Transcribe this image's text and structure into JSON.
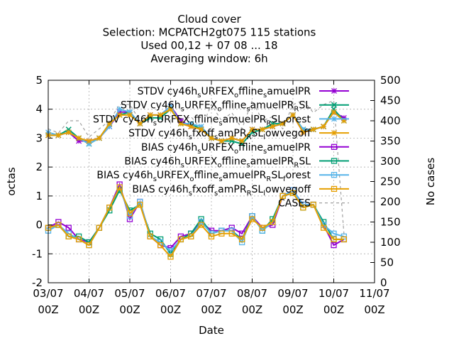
{
  "chart_data": {
    "type": "line",
    "title": [
      "Cloud cover",
      "Selection: MCPATCH2gt075    115 stations",
      "Used  00,12  + 07 08 ... 18",
      "Averaging window:  6h"
    ],
    "xlabel": "Date",
    "ylabel": "octas",
    "y2label": "No cases",
    "xlim": [
      0,
      8
    ],
    "ylim": [
      -2,
      5
    ],
    "y2lim": [
      0,
      500
    ],
    "x_ticks": [
      {
        "pos": 0,
        "line1": "03/07",
        "line2": "00Z"
      },
      {
        "pos": 1,
        "line1": "04/07",
        "line2": "00Z"
      },
      {
        "pos": 2,
        "line1": "05/07",
        "line2": "00Z"
      },
      {
        "pos": 3,
        "line1": "06/07",
        "line2": "00Z"
      },
      {
        "pos": 4,
        "line1": "07/07",
        "line2": "00Z"
      },
      {
        "pos": 5,
        "line1": "08/07",
        "line2": "00Z"
      },
      {
        "pos": 6,
        "line1": "09/07",
        "line2": "00Z"
      },
      {
        "pos": 7,
        "line1": "10/07",
        "line2": "00Z"
      },
      {
        "pos": 8,
        "line1": "11/07",
        "line2": "00Z"
      }
    ],
    "y_ticks": [
      -2,
      -1,
      0,
      1,
      2,
      3,
      4,
      5
    ],
    "y2_ticks": [
      0,
      50,
      100,
      150,
      200,
      250,
      300,
      350,
      400,
      450,
      500
    ],
    "grid": true,
    "legend_position": "top-right",
    "x": [
      0,
      0.25,
      0.5,
      0.75,
      1,
      1.25,
      1.5,
      1.75,
      2,
      2.25,
      2.5,
      2.75,
      3,
      3.25,
      3.5,
      3.75,
      4,
      4.25,
      4.5,
      4.75,
      5,
      5.25,
      5.5,
      5.75,
      6,
      6.25,
      6.5,
      6.75,
      7,
      7.25
    ],
    "series": [
      {
        "legend": [
          "STDV cy46h",
          "s",
          "URFEX",
          "o",
          "ffline",
          "s",
          "amuelPR"
        ],
        "color": "#9400d3",
        "marker": "star",
        "axis": "y",
        "values": [
          3.1,
          3.1,
          3.2,
          2.9,
          2.9,
          3.0,
          3.4,
          3.9,
          3.9,
          3.5,
          3.8,
          3.8,
          4.1,
          3.6,
          3.4,
          3.3,
          3.0,
          2.9,
          3.0,
          2.9,
          3.3,
          3.3,
          3.4,
          3.5,
          3.8,
          3.2,
          3.3,
          3.4,
          3.9,
          3.7
        ]
      },
      {
        "legend": [
          "STDV cy46h",
          "s",
          "URFEX",
          "o",
          "ffline",
          "s",
          "amuelPR",
          "R",
          "SL"
        ],
        "color": "#009e73",
        "marker": "x",
        "axis": "y",
        "values": [
          3.1,
          3.1,
          3.3,
          3.0,
          2.8,
          3.0,
          3.5,
          3.8,
          3.9,
          3.5,
          3.7,
          3.7,
          4.0,
          3.5,
          3.5,
          3.3,
          3.0,
          2.9,
          2.9,
          2.8,
          3.2,
          3.3,
          3.5,
          3.5,
          3.8,
          3.3,
          3.3,
          3.4,
          4.0,
          3.6
        ]
      },
      {
        "legend": [
          "STDV cy46h",
          "s",
          "URFEX",
          "o",
          "ffline",
          "s",
          "amuelPR",
          "R",
          "SL",
          "f",
          "orest"
        ],
        "color": "#56b4e9",
        "marker": "star",
        "axis": "y",
        "values": [
          3.2,
          3.1,
          3.2,
          3.0,
          2.8,
          3.0,
          3.4,
          4.0,
          3.9,
          3.5,
          3.8,
          3.8,
          4.1,
          3.5,
          3.5,
          3.4,
          3.0,
          2.9,
          3.0,
          2.9,
          3.3,
          3.3,
          3.4,
          3.5,
          3.8,
          3.3,
          3.3,
          3.4,
          3.9,
          3.6
        ]
      },
      {
        "legend": [
          "STDV cy46h",
          "s",
          "fxoff",
          "s",
          "amPR",
          "R",
          "SL",
          "l",
          "owvegoff"
        ],
        "color": "#e69f00",
        "marker": "star",
        "axis": "y",
        "values": [
          3.1,
          3.1,
          3.2,
          3.0,
          2.9,
          3.0,
          3.5,
          3.8,
          3.8,
          3.5,
          3.8,
          3.8,
          4.0,
          3.5,
          3.4,
          3.3,
          3.0,
          2.9,
          3.0,
          2.9,
          3.3,
          3.3,
          3.4,
          3.5,
          3.8,
          3.2,
          3.3,
          3.4,
          3.9,
          3.6
        ]
      },
      {
        "legend": [
          "BIAS cy46h",
          "s",
          "URFEX",
          "o",
          "ffline",
          "s",
          "amuelPR"
        ],
        "color": "#9400d3",
        "marker": "square",
        "axis": "y",
        "values": [
          -0.1,
          0.1,
          -0.1,
          -0.5,
          -0.6,
          -0.1,
          0.6,
          1.4,
          0.2,
          0.8,
          -0.4,
          -0.7,
          -0.8,
          -0.4,
          -0.3,
          0.1,
          -0.2,
          -0.2,
          -0.1,
          -0.3,
          0.3,
          -0.1,
          0.0,
          1.0,
          1.2,
          0.7,
          0.7,
          0.0,
          -0.7,
          -0.5
        ]
      },
      {
        "legend": [
          "BIAS cy46h",
          "s",
          "URFEX",
          "o",
          "ffline",
          "s",
          "amuelPR",
          "R",
          "SL"
        ],
        "color": "#009e73",
        "marker": "square",
        "axis": "y",
        "values": [
          -0.1,
          0.0,
          -0.4,
          -0.4,
          -0.6,
          -0.1,
          0.5,
          1.2,
          0.5,
          0.7,
          -0.3,
          -0.5,
          -1.0,
          -0.5,
          -0.3,
          0.2,
          -0.3,
          -0.2,
          -0.2,
          -0.5,
          0.3,
          -0.2,
          0.2,
          1.0,
          1.1,
          0.6,
          0.7,
          0.1,
          -0.5,
          -0.5
        ]
      },
      {
        "legend": [
          "BIAS cy46h",
          "s",
          "URFEX",
          "o",
          "ffline",
          "s",
          "amuelPR",
          "R",
          "SL",
          "f",
          "orest"
        ],
        "color": "#56b4e9",
        "marker": "square",
        "axis": "y",
        "values": [
          -0.2,
          0.0,
          -0.3,
          -0.5,
          -0.7,
          -0.1,
          0.6,
          1.3,
          0.3,
          0.8,
          -0.4,
          -0.6,
          -0.9,
          -0.5,
          -0.4,
          0.1,
          -0.3,
          -0.2,
          -0.2,
          -0.6,
          0.3,
          -0.2,
          0.1,
          1.0,
          1.2,
          0.7,
          0.7,
          0.0,
          -0.3,
          -0.4
        ]
      },
      {
        "legend": [
          "BIAS cy46h",
          "s",
          "fxoff",
          "s",
          "amPR",
          "R",
          "SL",
          "l",
          "owvegoff"
        ],
        "color": "#e69f00",
        "marker": "square",
        "axis": "y",
        "values": [
          -0.1,
          0.0,
          -0.4,
          -0.5,
          -0.7,
          -0.1,
          0.6,
          1.3,
          0.4,
          0.7,
          -0.4,
          -0.7,
          -1.1,
          -0.5,
          -0.4,
          0.0,
          -0.4,
          -0.3,
          -0.3,
          -0.5,
          0.2,
          -0.1,
          0.1,
          1.0,
          1.1,
          0.6,
          0.7,
          -0.1,
          -0.5,
          -0.5
        ]
      },
      {
        "legend": [
          "CASES"
        ],
        "color": "#a0a0a0",
        "marker": "none",
        "dashed": true,
        "axis": "y2",
        "values": [
          380,
          370,
          400,
          400,
          360,
          380,
          400,
          440,
          440,
          400,
          400,
          410,
          440,
          400,
          410,
          380,
          440,
          400,
          420,
          380,
          450,
          400,
          410,
          380,
          440,
          450,
          420,
          440,
          450,
          120
        ]
      }
    ]
  }
}
